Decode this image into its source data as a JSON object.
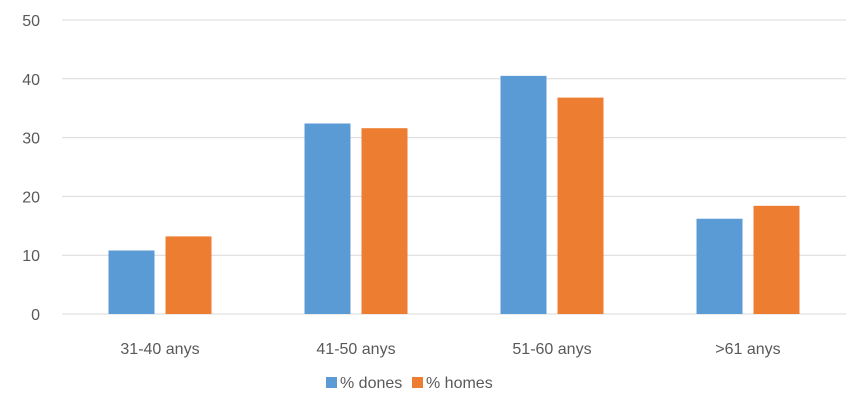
{
  "chart_data": {
    "type": "bar",
    "categories": [
      "31-40 anys",
      "41-50 anys",
      "51-60 anys",
      ">61 anys"
    ],
    "series": [
      {
        "name": "% dones",
        "values": [
          10.8,
          32.4,
          40.5,
          16.2
        ],
        "color": "#5B9BD5"
      },
      {
        "name": "% homes",
        "values": [
          13.2,
          31.6,
          36.8,
          18.4
        ],
        "color": "#ED7D31"
      }
    ],
    "ylim": [
      0,
      50
    ],
    "yticks": [
      "0",
      "10",
      "20",
      "30",
      "40",
      "50"
    ],
    "grid": true,
    "legend": "bottom-center"
  }
}
